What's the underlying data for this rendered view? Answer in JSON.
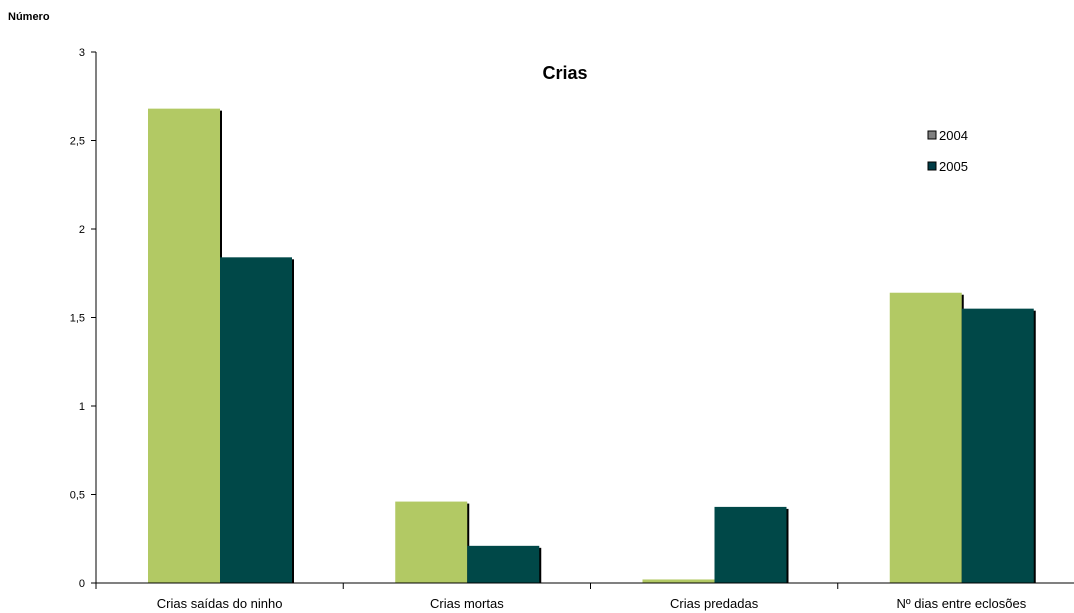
{
  "chart_data": {
    "type": "bar",
    "title": "Crias",
    "ylabel": "Número",
    "xlabel": "",
    "categories": [
      "Crias saídas do ninho",
      "Crias mortas",
      "Crias predadas",
      "Nº dias entre eclosões"
    ],
    "series": [
      {
        "name": "2004",
        "values": [
          2.68,
          0.46,
          0.02,
          1.64
        ],
        "color": "#b2c964",
        "legend_color": "#808080"
      },
      {
        "name": "2005",
        "values": [
          1.84,
          0.21,
          0.43,
          1.55
        ],
        "color": "#004848",
        "legend_color": "#003c46"
      }
    ],
    "ylim": [
      0,
      3
    ],
    "yticks": [
      0,
      0.5,
      1,
      1.5,
      2,
      2.5,
      3
    ],
    "ytick_labels": [
      "0",
      "0,5",
      "1",
      "1,5",
      "2",
      "2,5",
      "3"
    ],
    "grid": false,
    "legend_position": "top-right",
    "shadow_color": "#000000"
  }
}
